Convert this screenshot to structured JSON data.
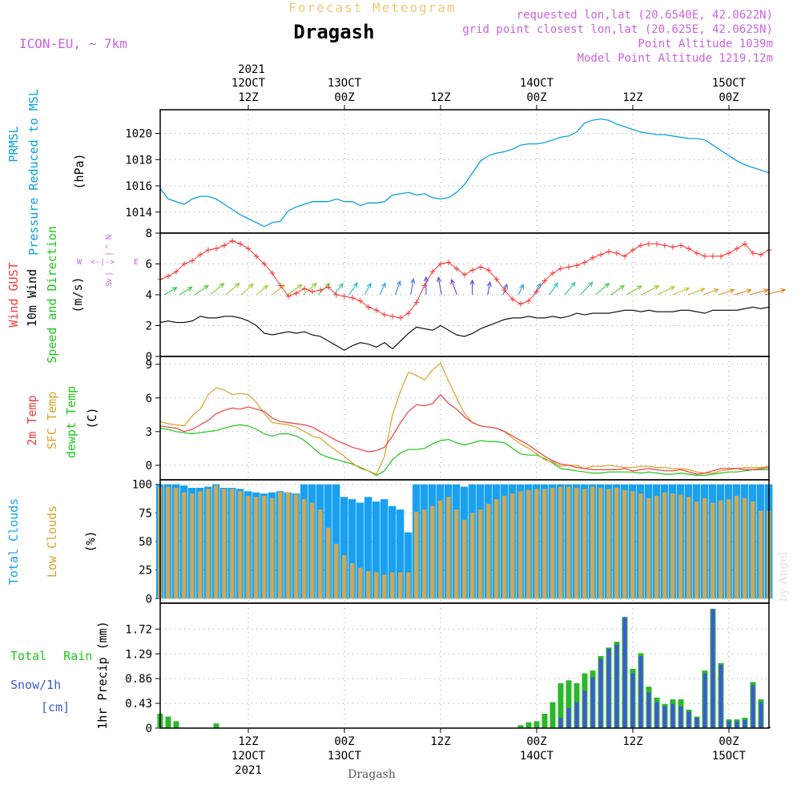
{
  "header": {
    "title_top": "Forecast Meteogram",
    "location": "Dragash",
    "model": "ICON-EU, ~ 7km",
    "requested": "requested lon,lat (20.6540E, 42.0622N)",
    "grid_point": "grid point closest lon,lat (20.625E, 42.0625N)",
    "point_altitude": "Point Altitude 1039m",
    "model_altitude": "Model Point Altitude 1219.12m"
  },
  "time_axis": {
    "year_top": "2021",
    "top_labels": [
      {
        "h": 12,
        "line1": "12OCT",
        "line2": "12Z"
      },
      {
        "h": 24,
        "line1": "13OCT",
        "line2": "00Z"
      },
      {
        "h": 36,
        "line1": "",
        "line2": "12Z"
      },
      {
        "h": 48,
        "line1": "14OCT",
        "line2": "00Z"
      },
      {
        "h": 60,
        "line1": "",
        "line2": "12Z"
      },
      {
        "h": 72,
        "line1": "15OCT",
        "line2": "00Z"
      }
    ],
    "bottom_labels": [
      {
        "h": 12,
        "line1": "12Z",
        "line2": "12OCT",
        "line3": "2021"
      },
      {
        "h": 24,
        "line1": "00Z",
        "line2": "13OCT",
        "line3": ""
      },
      {
        "h": 36,
        "line1": "12Z",
        "line2": "",
        "line3": ""
      },
      {
        "h": 48,
        "line1": "00Z",
        "line2": "14OCT",
        "line3": ""
      },
      {
        "h": 60,
        "line1": "12Z",
        "line2": "",
        "line3": ""
      },
      {
        "h": 72,
        "line1": "00Z",
        "line2": "15OCT",
        "line3": ""
      }
    ],
    "footer": "Dragash",
    "watermark": "by Angel"
  },
  "panels": {
    "pressure": {
      "label1": "PRMSL",
      "label2": "Pressure Reduced to MSL",
      "unit": "(hPa)"
    },
    "wind": {
      "label_gust": "Wind GUST",
      "label_10m": "10m Wind",
      "label_dir": "Speed and Direction",
      "unit": "(m/s)",
      "compass_n": "N",
      "compass_s": "S",
      "compass_w": "W",
      "compass_e": "E",
      "compass_mid": "<-|->",
      "compass_top_arrow": "^",
      "compass_bot_arrow": "v",
      "compass_pipe": "|"
    },
    "temp": {
      "label1": "2m Temp",
      "label2": "SFC Temp",
      "label3": "dewpt Temp",
      "unit": "(C)"
    },
    "clouds": {
      "label1": "Total Clouds",
      "label2": "Low Clouds",
      "unit": "(%)"
    },
    "precip": {
      "label1": "Total Rain",
      "label2": "Snow/1h",
      "label3": "[cm]",
      "ylabel": "1hr Precip (mm)"
    }
  },
  "colors": {
    "pressure": "#0aa0e0",
    "gust": "#f03c3c",
    "wind": "#000000",
    "temp2m": "#f03c3c",
    "sfc": "#dca028",
    "dewpt": "#19c819",
    "total_clouds": "#19a0f0",
    "low_clouds": "#c8aa5a",
    "rain": "#2ab82a",
    "snow": "#3c5ad2",
    "title_orange": "#f0c878",
    "info_purple": "#c864dc"
  },
  "chart_data": {
    "type": "line",
    "x_unit": "hours since 2021-10-11 12Z (ticks every 3 h)",
    "x": [
      1,
      77
    ],
    "pressure": {
      "yticks": [
        1014,
        1016,
        1018,
        1020
      ],
      "ylim": [
        1012.4,
        1021.8
      ],
      "values": [
        1015.8,
        1015.0,
        1014.8,
        1014.6,
        1015.0,
        1015.2,
        1015.2,
        1015.0,
        1014.6,
        1014.2,
        1013.8,
        1013.5,
        1013.2,
        1012.9,
        1013.2,
        1013.3,
        1014.1,
        1014.4,
        1014.6,
        1014.8,
        1014.8,
        1014.8,
        1015.0,
        1014.8,
        1014.8,
        1014.5,
        1014.7,
        1014.7,
        1014.8,
        1015.3,
        1015.4,
        1015.5,
        1015.3,
        1015.4,
        1015.1,
        1015.0,
        1015.1,
        1015.5,
        1016.1,
        1017.0,
        1017.9,
        1018.3,
        1018.5,
        1018.6,
        1018.8,
        1019.1,
        1019.2,
        1019.2,
        1019.3,
        1019.5,
        1019.7,
        1019.8,
        1020.1,
        1020.8,
        1021.0,
        1021.1,
        1021.0,
        1020.7,
        1020.5,
        1020.3,
        1020.1,
        1020.0,
        1019.9,
        1019.9,
        1019.8,
        1019.7,
        1019.6,
        1019.6,
        1019.5,
        1019.1,
        1018.7,
        1018.3,
        1017.9,
        1017.6,
        1017.4,
        1017.2,
        1017.0
      ]
    },
    "wind": {
      "yticks": [
        0,
        2,
        4,
        6,
        8
      ],
      "ylim": [
        0,
        8
      ],
      "gust": [
        5.0,
        5.2,
        5.5,
        6.0,
        6.2,
        6.6,
        6.9,
        7.0,
        7.2,
        7.5,
        7.3,
        7.0,
        6.5,
        6.0,
        5.4,
        4.6,
        3.9,
        4.1,
        4.4,
        4.2,
        4.3,
        4.5,
        4.0,
        3.9,
        3.8,
        3.6,
        3.2,
        3.0,
        2.7,
        2.6,
        2.5,
        2.8,
        3.5,
        4.6,
        5.5,
        6.0,
        6.1,
        5.7,
        5.3,
        5.6,
        5.8,
        5.6,
        5.0,
        4.3,
        3.7,
        3.4,
        3.6,
        4.2,
        4.9,
        5.4,
        5.7,
        5.8,
        5.9,
        6.1,
        6.4,
        6.6,
        6.8,
        6.7,
        6.5,
        6.9,
        7.2,
        7.3,
        7.3,
        7.2,
        7.1,
        7.2,
        7.0,
        6.7,
        6.5,
        6.5,
        6.5,
        6.7,
        7.0,
        7.3,
        6.7,
        6.6,
        6.9
      ],
      "speed": [
        2.2,
        2.3,
        2.2,
        2.2,
        2.3,
        2.6,
        2.5,
        2.5,
        2.6,
        2.6,
        2.5,
        2.3,
        2.0,
        1.5,
        1.4,
        1.5,
        1.6,
        1.5,
        1.6,
        1.4,
        1.3,
        1.0,
        0.7,
        0.4,
        0.7,
        0.9,
        0.8,
        0.6,
        0.9,
        0.5,
        1.0,
        1.5,
        1.9,
        1.8,
        1.7,
        2.0,
        1.7,
        1.4,
        1.3,
        1.5,
        1.8,
        2.0,
        2.2,
        2.4,
        2.5,
        2.5,
        2.6,
        2.5,
        2.5,
        2.6,
        2.5,
        2.6,
        2.8,
        2.7,
        2.8,
        2.8,
        2.8,
        2.9,
        3.0,
        3.0,
        2.9,
        3.0,
        2.9,
        2.9,
        2.9,
        3.0,
        3.0,
        2.9,
        2.8,
        3.0,
        3.0,
        3.0,
        3.0,
        3.1,
        3.2,
        3.1,
        3.2
      ],
      "arrow_colors": [
        "#28c850",
        "#30c840",
        "#50c830",
        "#78c828",
        "#90c830",
        "#a0c828",
        "#a8c830",
        "#b0c82c",
        "#a0c830",
        "#90c828",
        "#70c83c",
        "#30c8a0",
        "#20c0c8",
        "#20b0e0",
        "#28a0f0",
        "#3090f0",
        "#3c70f0",
        "#5050f0",
        "#6040e0",
        "#7838d8",
        "#6040e0",
        "#5050e8",
        "#3c70f0",
        "#3090f0",
        "#20a8e8",
        "#20c0c8",
        "#28c8a0",
        "#30c880",
        "#40c860",
        "#60c840",
        "#80c830",
        "#a0c828",
        "#b8c828",
        "#c8c028",
        "#d0b028",
        "#d8a028",
        "#e09028",
        "#e08828",
        "#e08028",
        "#e07828"
      ],
      "arrow_len": [
        18,
        18,
        20,
        22,
        22,
        20,
        18,
        20,
        22,
        22,
        20,
        18,
        18,
        16,
        16,
        18,
        20,
        22,
        22,
        20,
        18,
        16,
        14,
        14,
        16,
        18,
        20,
        22,
        22,
        20,
        22,
        24,
        24,
        22,
        22,
        20,
        20,
        22,
        24,
        26
      ],
      "arrow_angle": [
        -150,
        -148,
        -145,
        -140,
        -140,
        -138,
        -140,
        -142,
        -145,
        -140,
        -135,
        -130,
        -125,
        -120,
        -115,
        -110,
        -100,
        -90,
        -80,
        -70,
        -90,
        -100,
        -110,
        -115,
        -120,
        -125,
        -130,
        -135,
        -140,
        -145,
        -150,
        -152,
        -155,
        -158,
        -160,
        -160,
        -162,
        -164,
        -165,
        -166
      ]
    },
    "temp": {
      "yticks": [
        0,
        3,
        6,
        9
      ],
      "ylim": [
        -1.3,
        9.7
      ],
      "t2m": [
        3.5,
        3.4,
        3.3,
        3.0,
        3.2,
        3.6,
        4.0,
        4.6,
        4.9,
        5.1,
        5.0,
        5.2,
        5.0,
        4.8,
        4.2,
        3.9,
        3.8,
        3.7,
        3.6,
        3.4,
        3.0,
        2.6,
        2.2,
        1.9,
        1.6,
        1.4,
        1.2,
        1.3,
        1.6,
        2.6,
        3.8,
        4.8,
        5.4,
        5.3,
        5.5,
        6.3,
        5.5,
        5.0,
        4.3,
        3.8,
        3.5,
        3.4,
        3.3,
        3.0,
        2.6,
        2.2,
        1.8,
        1.3,
        0.8,
        0.4,
        0.1,
        0.0,
        -0.2,
        -0.3,
        -0.4,
        -0.4,
        -0.4,
        -0.4,
        -0.3,
        -0.5,
        -0.4,
        -0.3,
        -0.4,
        -0.5,
        -0.5,
        -0.4,
        -0.6,
        -0.8,
        -0.7,
        -0.5,
        -0.3,
        -0.3,
        -0.3,
        -0.4,
        -0.4,
        -0.3,
        -0.2
      ],
      "sfc": [
        3.9,
        3.7,
        3.6,
        3.5,
        4.4,
        5.0,
        6.3,
        6.9,
        6.7,
        6.3,
        6.4,
        6.3,
        5.6,
        4.6,
        3.8,
        3.7,
        3.6,
        3.4,
        3.0,
        2.6,
        2.4,
        1.8,
        1.3,
        0.8,
        0.2,
        -0.3,
        -0.5,
        -0.8,
        0.8,
        4.5,
        6.6,
        8.3,
        8.0,
        7.6,
        8.5,
        9.1,
        7.5,
        6.0,
        4.6,
        3.8,
        3.5,
        3.4,
        3.3,
        3.0,
        2.4,
        1.9,
        1.5,
        1.0,
        0.5,
        0.3,
        -0.1,
        0.0,
        0.0,
        -0.3,
        -0.1,
        -0.1,
        0.0,
        -0.1,
        -0.2,
        -0.2,
        -0.1,
        -0.1,
        -0.2,
        -0.2,
        -0.3,
        -0.3,
        -0.4,
        -0.6,
        -0.7,
        -0.7,
        -0.5,
        -0.4,
        -0.3,
        -0.2,
        -0.2,
        -0.2,
        -0.1
      ],
      "dewpt": [
        3.3,
        3.2,
        3.0,
        2.9,
        2.8,
        2.9,
        3.0,
        3.1,
        3.3,
        3.5,
        3.6,
        3.5,
        3.2,
        2.8,
        2.6,
        2.8,
        2.8,
        2.6,
        2.2,
        1.6,
        1.0,
        0.7,
        0.5,
        0.3,
        0.1,
        -0.2,
        -0.5,
        -0.9,
        -0.5,
        0.5,
        1.1,
        1.4,
        1.4,
        1.5,
        1.9,
        2.2,
        2.3,
        2.0,
        1.8,
        2.0,
        2.2,
        2.1,
        2.1,
        2.0,
        1.5,
        1.0,
        0.9,
        0.9,
        0.6,
        0.2,
        -0.3,
        -0.4,
        -0.5,
        -0.6,
        -0.7,
        -0.7,
        -0.6,
        -0.6,
        -0.6,
        -0.6,
        -0.7,
        -0.6,
        -0.7,
        -0.8,
        -0.8,
        -0.7,
        -0.8,
        -0.9,
        -0.9,
        -0.8,
        -0.7,
        -0.6,
        -0.6,
        -0.5,
        -0.4,
        -0.4,
        -0.4
      ]
    },
    "clouds": {
      "yticks": [
        0,
        25,
        50,
        75,
        100
      ],
      "ylim": [
        -4,
        104
      ],
      "total": [
        100,
        100,
        100,
        99,
        97,
        97,
        98,
        100,
        97,
        97,
        96,
        94,
        93,
        92,
        93,
        94,
        93,
        92,
        100,
        100,
        100,
        100,
        100,
        89,
        87,
        84,
        89,
        85,
        87,
        81,
        78,
        58,
        100,
        100,
        100,
        100,
        100,
        100,
        98,
        100,
        100,
        100,
        100,
        100,
        100,
        100,
        100,
        100,
        100,
        100,
        100,
        100,
        100,
        100,
        100,
        100,
        100,
        100,
        100,
        100,
        100,
        100,
        100,
        100,
        100,
        100,
        100,
        100,
        100,
        100,
        100,
        100,
        100,
        100,
        100,
        100,
        100
      ],
      "low": [
        98,
        98,
        97,
        93,
        92,
        94,
        96,
        99,
        96,
        96,
        94,
        90,
        89,
        90,
        88,
        93,
        93,
        91,
        87,
        84,
        78,
        62,
        48,
        38,
        31,
        27,
        24,
        23,
        21,
        23,
        23,
        23,
        76,
        78,
        81,
        86,
        89,
        78,
        69,
        75,
        78,
        83,
        87,
        90,
        92,
        94,
        95,
        96,
        96,
        97,
        98,
        98,
        97,
        96,
        98,
        97,
        96,
        97,
        95,
        94,
        92,
        88,
        90,
        93,
        92,
        91,
        89,
        85,
        88,
        84,
        86,
        87,
        90,
        88,
        85,
        77,
        77
      ]
    },
    "precip": {
      "yticks": [
        0,
        0.43,
        0.86,
        1.29,
        1.72
      ],
      "ylim": [
        0,
        2.17
      ],
      "rain": [
        0.25,
        0.2,
        0.12,
        0,
        0,
        0,
        0,
        0.08,
        0,
        0,
        0,
        0,
        0,
        0,
        0,
        0,
        0,
        0,
        0,
        0,
        0,
        0,
        0,
        0,
        0,
        0,
        0,
        0,
        0,
        0,
        0,
        0,
        0,
        0,
        0,
        0,
        0,
        0,
        0,
        0,
        0,
        0,
        0,
        0,
        0,
        0.05,
        0.1,
        0.12,
        0.25,
        0.45,
        0.78,
        0.83,
        0.78,
        0.95,
        1.0,
        1.25,
        1.4,
        1.5,
        1.93,
        1.03,
        1.3,
        0.72,
        0.53,
        0.42,
        0.5,
        0.5,
        0.32,
        0.2,
        1.0,
        2.07,
        1.13,
        0.15,
        0.15,
        0.18,
        0.8,
        0.5,
        0
      ],
      "snow": [
        0,
        0,
        0,
        0,
        0,
        0,
        0,
        0,
        0,
        0,
        0,
        0,
        0,
        0,
        0,
        0,
        0,
        0,
        0,
        0,
        0,
        0,
        0,
        0,
        0,
        0,
        0,
        0,
        0,
        0,
        0,
        0,
        0,
        0,
        0,
        0,
        0,
        0,
        0,
        0,
        0,
        0,
        0,
        0,
        0,
        0,
        0,
        0,
        0,
        0,
        0.18,
        0.35,
        0.45,
        0.65,
        0.88,
        1.2,
        1.38,
        1.45,
        1.93,
        0.95,
        1.25,
        0.62,
        0.45,
        0.38,
        0.42,
        0.38,
        0.28,
        0.18,
        0.95,
        2.07,
        1.1,
        0.12,
        0.12,
        0.14,
        0.75,
        0.45,
        0.02
      ]
    }
  }
}
